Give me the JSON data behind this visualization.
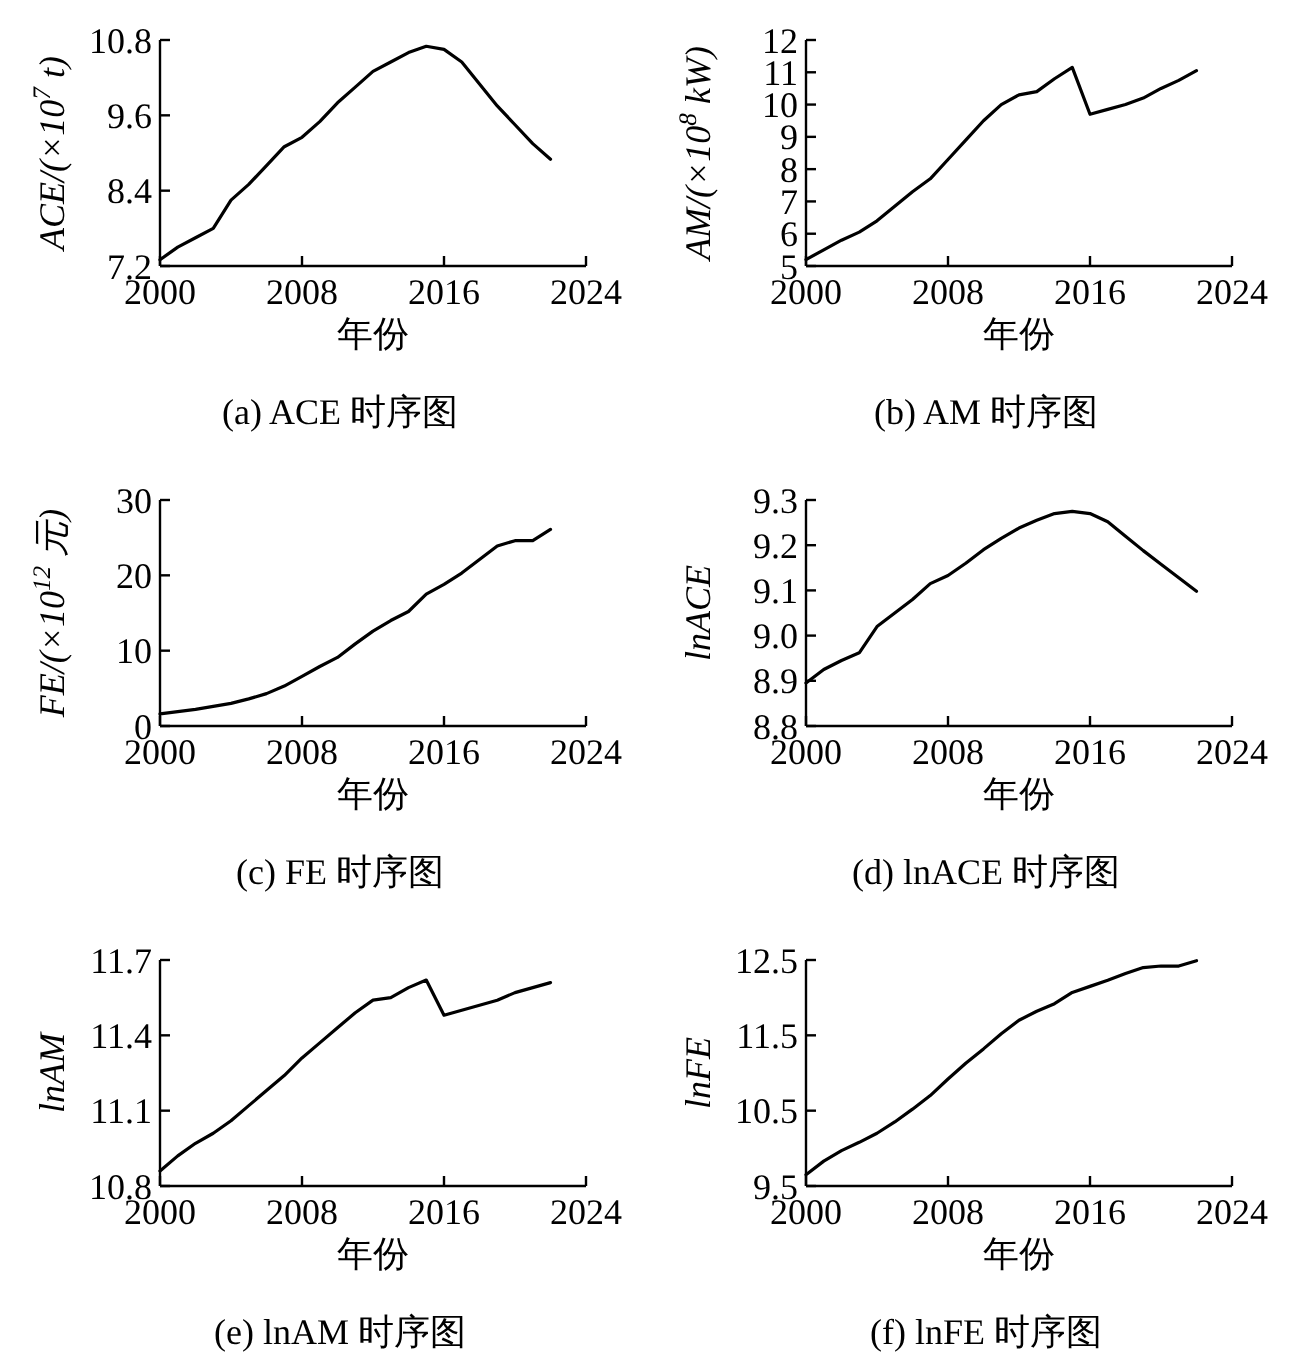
{
  "chart_data": [
    {
      "type": "line",
      "title": "(a) ACE 时序图",
      "xlabel": "年份",
      "ylabel": "ACE/(×10$^{7}$ t)",
      "x": [
        2000,
        2001,
        2002,
        2003,
        2004,
        2005,
        2006,
        2007,
        2008,
        2009,
        2010,
        2011,
        2012,
        2013,
        2014,
        2015,
        2016,
        2017,
        2018,
        2019,
        2020,
        2021,
        2022
      ],
      "xlim": [
        2000,
        2024
      ],
      "xticks": [
        2000,
        2008,
        2016,
        2024
      ],
      "ylim": [
        7.2,
        10.8
      ],
      "yticks": [
        7.2,
        8.4,
        9.6,
        10.8
      ],
      "series": [
        {
          "color": "#000000",
          "values": [
            7.3,
            7.5,
            7.65,
            7.8,
            8.25,
            8.5,
            8.8,
            9.1,
            9.25,
            9.5,
            9.8,
            10.05,
            10.3,
            10.45,
            10.6,
            10.7,
            10.65,
            10.45,
            10.1,
            9.75,
            9.45,
            9.15,
            8.9
          ]
        }
      ]
    },
    {
      "type": "line",
      "title": "(b) AM 时序图",
      "xlabel": "年份",
      "ylabel": "AM/(×10$^{8}$ kW)",
      "x": [
        2000,
        2001,
        2002,
        2003,
        2004,
        2005,
        2006,
        2007,
        2008,
        2009,
        2010,
        2011,
        2012,
        2013,
        2014,
        2015,
        2016,
        2017,
        2018,
        2019,
        2020,
        2021,
        2022
      ],
      "xlim": [
        2000,
        2024
      ],
      "xticks": [
        2000,
        2008,
        2016,
        2024
      ],
      "ylim": [
        5,
        12
      ],
      "yticks": [
        5,
        6,
        7,
        8,
        9,
        10,
        11,
        12
      ],
      "series": [
        {
          "color": "#000000",
          "values": [
            5.2,
            5.5,
            5.8,
            6.05,
            6.4,
            6.85,
            7.3,
            7.7,
            8.3,
            8.9,
            9.5,
            10.0,
            10.3,
            10.4,
            10.8,
            11.15,
            9.7,
            9.85,
            10.0,
            10.2,
            10.5,
            10.75,
            11.05
          ]
        }
      ]
    },
    {
      "type": "line",
      "title": "(c) FE 时序图",
      "xlabel": "年份",
      "ylabel": "FE/(×10$^{12}$ 元)",
      "x": [
        2000,
        2001,
        2002,
        2003,
        2004,
        2005,
        2006,
        2007,
        2008,
        2009,
        2010,
        2011,
        2012,
        2013,
        2014,
        2015,
        2016,
        2017,
        2018,
        2019,
        2020,
        2021,
        2022
      ],
      "xlim": [
        2000,
        2024
      ],
      "xticks": [
        2000,
        2008,
        2016,
        2024
      ],
      "ylim": [
        0,
        30
      ],
      "yticks": [
        0,
        10,
        20,
        30
      ],
      "series": [
        {
          "color": "#000000",
          "values": [
            1.6,
            1.9,
            2.2,
            2.6,
            3.0,
            3.6,
            4.3,
            5.3,
            6.6,
            7.9,
            9.1,
            10.9,
            12.6,
            14.0,
            15.2,
            17.5,
            18.8,
            20.3,
            22.1,
            23.9,
            24.6,
            24.6,
            26.1
          ]
        }
      ]
    },
    {
      "type": "line",
      "title": "(d) lnACE 时序图",
      "xlabel": "年份",
      "ylabel": "lnACE",
      "x": [
        2000,
        2001,
        2002,
        2003,
        2004,
        2005,
        2006,
        2007,
        2008,
        2009,
        2010,
        2011,
        2012,
        2013,
        2014,
        2015,
        2016,
        2017,
        2018,
        2019,
        2020,
        2021,
        2022
      ],
      "xlim": [
        2000,
        2024
      ],
      "xticks": [
        2000,
        2008,
        2016,
        2024
      ],
      "ylim": [
        8.8,
        9.3
      ],
      "yticks": [
        8.8,
        8.9,
        {
          "value": 9,
          "label": "9.0"
        },
        9.1,
        9.2,
        9.3
      ],
      "series": [
        {
          "color": "#000000",
          "values": [
            8.895,
            8.925,
            8.945,
            8.962,
            9.02,
            9.05,
            9.08,
            9.115,
            9.133,
            9.16,
            9.19,
            9.215,
            9.238,
            9.255,
            9.27,
            9.275,
            9.27,
            9.252,
            9.22,
            9.188,
            9.158,
            9.128,
            9.098
          ]
        }
      ]
    },
    {
      "type": "line",
      "title": "(e) lnAM 时序图",
      "xlabel": "年份",
      "ylabel": "lnAM",
      "x": [
        2000,
        2001,
        2002,
        2003,
        2004,
        2005,
        2006,
        2007,
        2008,
        2009,
        2010,
        2011,
        2012,
        2013,
        2014,
        2015,
        2016,
        2017,
        2018,
        2019,
        2020,
        2021,
        2022
      ],
      "xlim": [
        2000,
        2024
      ],
      "xticks": [
        2000,
        2008,
        2016,
        2024
      ],
      "ylim": [
        10.8,
        11.7
      ],
      "yticks": [
        10.8,
        11.1,
        11.4,
        11.7
      ],
      "series": [
        {
          "color": "#000000",
          "values": [
            10.86,
            10.92,
            10.97,
            11.01,
            11.06,
            11.12,
            11.18,
            11.24,
            11.31,
            11.37,
            11.43,
            11.49,
            11.54,
            11.55,
            11.59,
            11.62,
            11.48,
            11.5,
            11.52,
            11.54,
            11.57,
            11.59,
            11.61
          ]
        }
      ]
    },
    {
      "type": "line",
      "title": "(f) lnFE 时序图",
      "xlabel": "年份",
      "ylabel": "lnFE",
      "x": [
        2000,
        2001,
        2002,
        2003,
        2004,
        2005,
        2006,
        2007,
        2008,
        2009,
        2010,
        2011,
        2012,
        2013,
        2014,
        2015,
        2016,
        2017,
        2018,
        2019,
        2020,
        2021,
        2022
      ],
      "xlim": [
        2000,
        2024
      ],
      "xticks": [
        2000,
        2008,
        2016,
        2024
      ],
      "ylim": [
        9.5,
        12.5
      ],
      "yticks": [
        9.5,
        10.5,
        11.5,
        12.5
      ],
      "series": [
        {
          "color": "#000000",
          "values": [
            9.65,
            9.83,
            9.97,
            10.08,
            10.2,
            10.35,
            10.52,
            10.7,
            10.92,
            11.13,
            11.32,
            11.52,
            11.7,
            11.82,
            11.92,
            12.07,
            12.15,
            12.23,
            12.32,
            12.4,
            12.42,
            12.42,
            12.49
          ]
        }
      ]
    }
  ]
}
